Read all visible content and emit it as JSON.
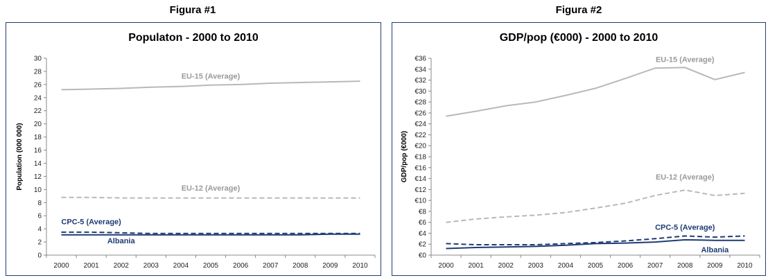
{
  "figures": [
    {
      "label": "Figura #1"
    },
    {
      "label": "Figura #2"
    }
  ],
  "chart_data": [
    {
      "type": "line",
      "title": "Populaton - 2000 to 2010",
      "xlabel": "",
      "ylabel": "Population (000 000)",
      "x": [
        "2000",
        "2001",
        "2002",
        "2003",
        "2004",
        "2005",
        "2006",
        "2007",
        "2008",
        "2009",
        "2010"
      ],
      "ylim": [
        0,
        30
      ],
      "yticks": [
        "0",
        "2",
        "4",
        "6",
        "8",
        "10",
        "12",
        "14",
        "16",
        "18",
        "20",
        "22",
        "24",
        "26",
        "28",
        "30"
      ],
      "grid": false,
      "legend": "none",
      "series": [
        {
          "name": "EU-15 (Average)",
          "color": "#b8b8b8",
          "dash": "solid",
          "values": [
            25.2,
            25.3,
            25.4,
            25.6,
            25.7,
            25.9,
            26.0,
            26.2,
            26.3,
            26.4,
            26.5
          ]
        },
        {
          "name": "EU-12 (Average)",
          "color": "#b8b8b8",
          "dash": "dashed",
          "values": [
            8.8,
            8.8,
            8.7,
            8.7,
            8.7,
            8.7,
            8.7,
            8.7,
            8.7,
            8.7,
            8.7
          ]
        },
        {
          "name": "CPC-5 (Average)",
          "color": "#1f3b73",
          "dash": "dashed",
          "values": [
            3.5,
            3.5,
            3.4,
            3.3,
            3.3,
            3.3,
            3.3,
            3.3,
            3.3,
            3.3,
            3.3
          ]
        },
        {
          "name": "Albania",
          "color": "#1f3b73",
          "dash": "solid",
          "values": [
            3.1,
            3.1,
            3.1,
            3.1,
            3.1,
            3.1,
            3.1,
            3.1,
            3.1,
            3.2,
            3.2
          ]
        }
      ],
      "annotations": [
        {
          "text": "EU-15 (Average)",
          "x": "2005",
          "y": 26.9,
          "color": "#9a9a9a"
        },
        {
          "text": "EU-12 (Average)",
          "x": "2005",
          "y": 9.8,
          "color": "#9a9a9a"
        },
        {
          "text": "CPC-5 (Average)",
          "x": "2001",
          "y": 4.7,
          "color": "#1f3b73"
        },
        {
          "text": "Albania",
          "x": "2002",
          "y": 1.8,
          "color": "#1f3b73"
        }
      ]
    },
    {
      "type": "line",
      "title": "GDP/pop (€000) - 2000 to 2010",
      "xlabel": "",
      "ylabel": "GDP/pop (€000)",
      "x": [
        "2000",
        "2001",
        "2002",
        "2003",
        "2004",
        "2005",
        "2006",
        "2007",
        "2008",
        "2009",
        "2010"
      ],
      "ylim": [
        0,
        36
      ],
      "yticks": [
        "€0",
        "€2",
        "€4",
        "€6",
        "€8",
        "€10",
        "€12",
        "€14",
        "€16",
        "€18",
        "€20",
        "€22",
        "€24",
        "€26",
        "€28",
        "€30",
        "€32",
        "€34",
        "€36"
      ],
      "grid": false,
      "legend": "none",
      "series": [
        {
          "name": "EU-15 (Average)",
          "color": "#b8b8b8",
          "dash": "solid",
          "values": [
            25.4,
            26.3,
            27.3,
            28.0,
            29.2,
            30.5,
            32.3,
            34.2,
            34.3,
            32.1,
            33.4
          ]
        },
        {
          "name": "EU-12 (Average)",
          "color": "#b8b8b8",
          "dash": "dashed",
          "values": [
            6.0,
            6.6,
            7.0,
            7.3,
            7.8,
            8.6,
            9.5,
            10.9,
            11.9,
            10.9,
            11.3
          ]
        },
        {
          "name": "CPC-5 (Average)",
          "color": "#1f3b73",
          "dash": "dashed",
          "values": [
            2.1,
            1.9,
            1.9,
            1.9,
            2.1,
            2.3,
            2.6,
            3.0,
            3.5,
            3.3,
            3.5
          ]
        },
        {
          "name": "Albania",
          "color": "#1f3b73",
          "dash": "solid",
          "values": [
            1.2,
            1.4,
            1.5,
            1.6,
            1.8,
            2.1,
            2.2,
            2.4,
            2.8,
            2.7,
            2.7
          ]
        }
      ],
      "annotations": [
        {
          "text": "EU-15 (Average)",
          "x": "2008",
          "y": 35.3,
          "color": "#9a9a9a"
        },
        {
          "text": "EU-12 (Average)",
          "x": "2008",
          "y": 13.8,
          "color": "#9a9a9a"
        },
        {
          "text": "CPC-5 (Average)",
          "x": "2008",
          "y": 4.6,
          "color": "#1f3b73"
        },
        {
          "text": "Albania",
          "x": "2009",
          "y": 0.5,
          "color": "#1f3b73"
        }
      ]
    }
  ]
}
